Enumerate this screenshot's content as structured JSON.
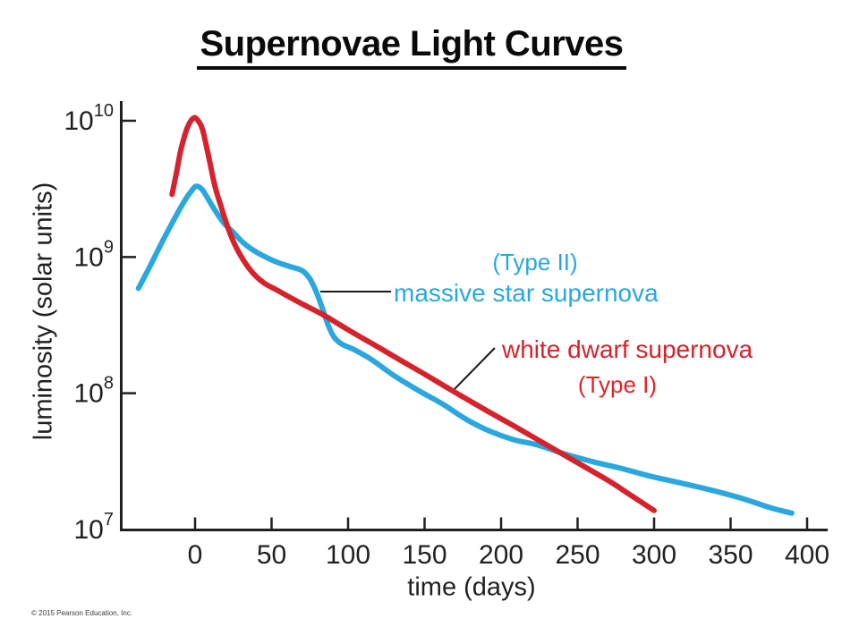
{
  "title": "Supernovae Light Curves",
  "copyright": "© 2015 Pearson Education, Inc.",
  "axes": {
    "x_label": "time (days)",
    "y_label": "luminosity (solar units)"
  },
  "annotations": {
    "type2_tag": "(Type II)",
    "blue_label": "massive star supernova",
    "red_label": "white dwarf supernova",
    "type1_tag": "(Type I)"
  },
  "colors": {
    "blue_curve": "#2aa7de",
    "red_curve": "#d5222c",
    "type1_text": "#e32227",
    "axis": "#231f20",
    "leader": "#1a1a1a",
    "title_text": "#0a0a0a",
    "copyright_text": "#3c3c3c"
  },
  "chart_data": {
    "type": "line",
    "title": "Supernovae Light Curves",
    "xlabel": "time (days)",
    "ylabel": "luminosity (solar units)",
    "x_ticks": [
      0,
      50,
      100,
      150,
      200,
      250,
      300,
      350,
      400
    ],
    "y_scale": "log10, solar units",
    "y_tick_exponents": [
      10,
      9,
      8,
      7
    ],
    "xlim": [
      -48,
      413
    ],
    "ylim_log10": [
      7,
      10.15
    ],
    "grid": false,
    "legend": "inline annotations",
    "series": [
      {
        "name": "massive star supernova (Type II)",
        "color": "#2aa7de",
        "points_day_log10": [
          [
            -37,
            8.77
          ],
          [
            -30,
            8.92
          ],
          [
            -22,
            9.1
          ],
          [
            -14,
            9.27
          ],
          [
            -7,
            9.41
          ],
          [
            -2,
            9.49
          ],
          [
            1,
            9.52
          ],
          [
            5,
            9.49
          ],
          [
            11,
            9.38
          ],
          [
            18,
            9.26
          ],
          [
            25,
            9.18
          ],
          [
            31,
            9.11
          ],
          [
            38,
            9.05
          ],
          [
            46,
            9.0
          ],
          [
            54,
            8.96
          ],
          [
            62,
            8.93
          ],
          [
            70,
            8.9
          ],
          [
            75,
            8.84
          ],
          [
            79,
            8.75
          ],
          [
            83,
            8.63
          ],
          [
            87,
            8.5
          ],
          [
            91,
            8.41
          ],
          [
            96,
            8.36
          ],
          [
            104,
            8.32
          ],
          [
            115,
            8.25
          ],
          [
            130,
            8.13
          ],
          [
            146,
            8.02
          ],
          [
            162,
            7.92
          ],
          [
            177,
            7.81
          ],
          [
            193,
            7.72
          ],
          [
            208,
            7.66
          ],
          [
            224,
            7.62
          ],
          [
            240,
            7.56
          ],
          [
            259,
            7.5
          ],
          [
            278,
            7.45
          ],
          [
            298,
            7.39
          ],
          [
            318,
            7.34
          ],
          [
            337,
            7.29
          ],
          [
            357,
            7.23
          ],
          [
            376,
            7.16
          ],
          [
            390,
            7.12
          ]
        ]
      },
      {
        "name": "white dwarf supernova (Type I)",
        "color": "#d5222c",
        "points_day_log10": [
          [
            -15,
            9.46
          ],
          [
            -12,
            9.63
          ],
          [
            -9,
            9.8
          ],
          [
            -5,
            9.95
          ],
          [
            -1,
            10.02
          ],
          [
            2,
            10.0
          ],
          [
            5,
            9.93
          ],
          [
            9,
            9.73
          ],
          [
            13,
            9.52
          ],
          [
            17,
            9.37
          ],
          [
            21,
            9.23
          ],
          [
            26,
            9.09
          ],
          [
            32,
            8.97
          ],
          [
            38,
            8.88
          ],
          [
            45,
            8.81
          ],
          [
            53,
            8.76
          ],
          [
            61,
            8.71
          ],
          [
            71,
            8.65
          ],
          [
            83,
            8.58
          ],
          [
            95,
            8.5
          ],
          [
            107,
            8.42
          ],
          [
            118,
            8.35
          ],
          [
            130,
            8.27
          ],
          [
            150,
            8.14
          ],
          [
            171,
            8.0
          ],
          [
            191,
            7.87
          ],
          [
            210,
            7.75
          ],
          [
            230,
            7.62
          ],
          [
            250,
            7.49
          ],
          [
            270,
            7.36
          ],
          [
            285,
            7.25
          ],
          [
            300,
            7.14
          ]
        ]
      }
    ]
  }
}
